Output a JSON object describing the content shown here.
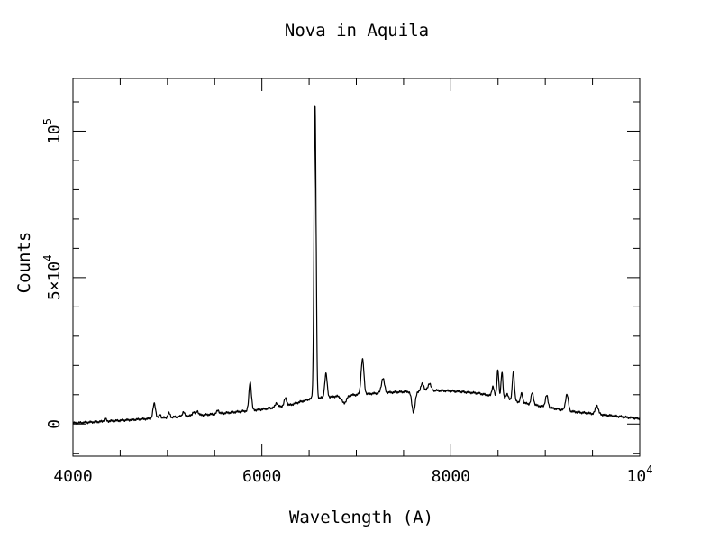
{
  "chart_data": {
    "type": "line",
    "title": "Nova in Aquila",
    "xlabel": "Wavelength (A)",
    "ylabel": "Counts",
    "xlim": [
      4000,
      10000
    ],
    "ylim": [
      -11000,
      118000
    ],
    "grid": false,
    "x_ticks": [
      {
        "value": 4000,
        "base": "4000",
        "sup": ""
      },
      {
        "value": 6000,
        "base": "6000",
        "sup": ""
      },
      {
        "value": 8000,
        "base": "8000",
        "sup": ""
      },
      {
        "value": 10000,
        "base": "10",
        "sup": "4"
      }
    ],
    "y_ticks": [
      {
        "value": 0,
        "base": "0",
        "sup": ""
      },
      {
        "value": 50000,
        "base": "5×10",
        "sup": "4"
      },
      {
        "value": 100000,
        "base": "10",
        "sup": "5"
      }
    ],
    "x_minor_step": 500,
    "y_minor_step": 10000,
    "continuum": [
      [
        4000,
        300
      ],
      [
        4500,
        1200
      ],
      [
        5000,
        2200
      ],
      [
        5500,
        3400
      ],
      [
        6000,
        5000
      ],
      [
        6300,
        6500
      ],
      [
        6500,
        8500
      ],
      [
        6800,
        9500
      ],
      [
        7000,
        10000
      ],
      [
        7300,
        10700
      ],
      [
        7500,
        11000
      ],
      [
        7800,
        11500
      ],
      [
        8000,
        11300
      ],
      [
        8300,
        10500
      ],
      [
        8500,
        9000
      ],
      [
        8800,
        7000
      ],
      [
        9000,
        5800
      ],
      [
        9300,
        4200
      ],
      [
        9600,
        3200
      ],
      [
        10000,
        1800
      ]
    ],
    "emission_lines": [
      {
        "x": 4340,
        "flux": 900,
        "width": 12
      },
      {
        "x": 4861,
        "flux": 5000,
        "width": 14
      },
      {
        "x": 4922,
        "flux": 1200,
        "width": 10
      },
      {
        "x": 5016,
        "flux": 1500,
        "width": 12
      },
      {
        "x": 5169,
        "flux": 1500,
        "width": 12
      },
      {
        "x": 5276,
        "flux": 1300,
        "width": 12
      },
      {
        "x": 5317,
        "flux": 1500,
        "width": 12
      },
      {
        "x": 5535,
        "flux": 1200,
        "width": 12
      },
      {
        "x": 5876,
        "flux": 9800,
        "width": 13
      },
      {
        "x": 6155,
        "flux": 1500,
        "width": 12
      },
      {
        "x": 6250,
        "flux": 2500,
        "width": 14
      },
      {
        "x": 6563,
        "flux": 100000,
        "width": 11
      },
      {
        "x": 6678,
        "flux": 8000,
        "width": 13
      },
      {
        "x": 7065,
        "flux": 12000,
        "width": 15
      },
      {
        "x": 7281,
        "flux": 5000,
        "width": 16
      },
      {
        "x": 7700,
        "flux": 2500,
        "width": 15
      },
      {
        "x": 7774,
        "flux": 2500,
        "width": 15
      },
      {
        "x": 8446,
        "flux": 3500,
        "width": 12
      },
      {
        "x": 8498,
        "flux": 9500,
        "width": 10
      },
      {
        "x": 8542,
        "flux": 9000,
        "width": 10
      },
      {
        "x": 8598,
        "flux": 2000,
        "width": 12
      },
      {
        "x": 8662,
        "flux": 10000,
        "width": 11
      },
      {
        "x": 8750,
        "flux": 3000,
        "width": 12
      },
      {
        "x": 8863,
        "flux": 4000,
        "width": 13
      },
      {
        "x": 9014,
        "flux": 4000,
        "width": 14
      },
      {
        "x": 9229,
        "flux": 5500,
        "width": 15
      },
      {
        "x": 9546,
        "flux": 3000,
        "width": 15
      }
    ],
    "absorption_features": [
      {
        "x": 6870,
        "depth": 2500,
        "width": 25
      },
      {
        "x": 7605,
        "depth": 7000,
        "width": 18
      }
    ]
  }
}
